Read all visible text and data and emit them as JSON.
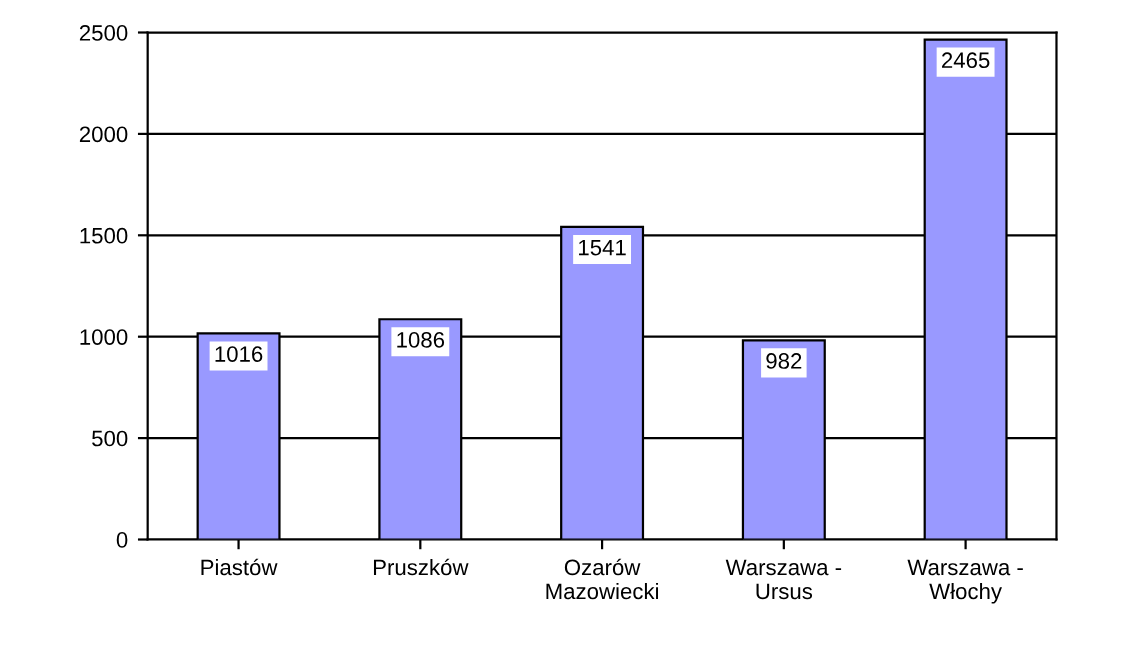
{
  "chart_data": {
    "type": "bar",
    "categories": [
      "Piastów",
      "Pruszków",
      "Ozarów\nMazowiecki",
      "Warszawa -\nUrsus",
      "Warszawa -\nWłochy"
    ],
    "values": [
      1016,
      1086,
      1541,
      982,
      2465
    ],
    "color": "#9999ff",
    "ylim": [
      0,
      2500
    ],
    "yticks": [
      0,
      500,
      1000,
      1500,
      2000,
      2500
    ],
    "grid": "y",
    "data_labels": true
  }
}
